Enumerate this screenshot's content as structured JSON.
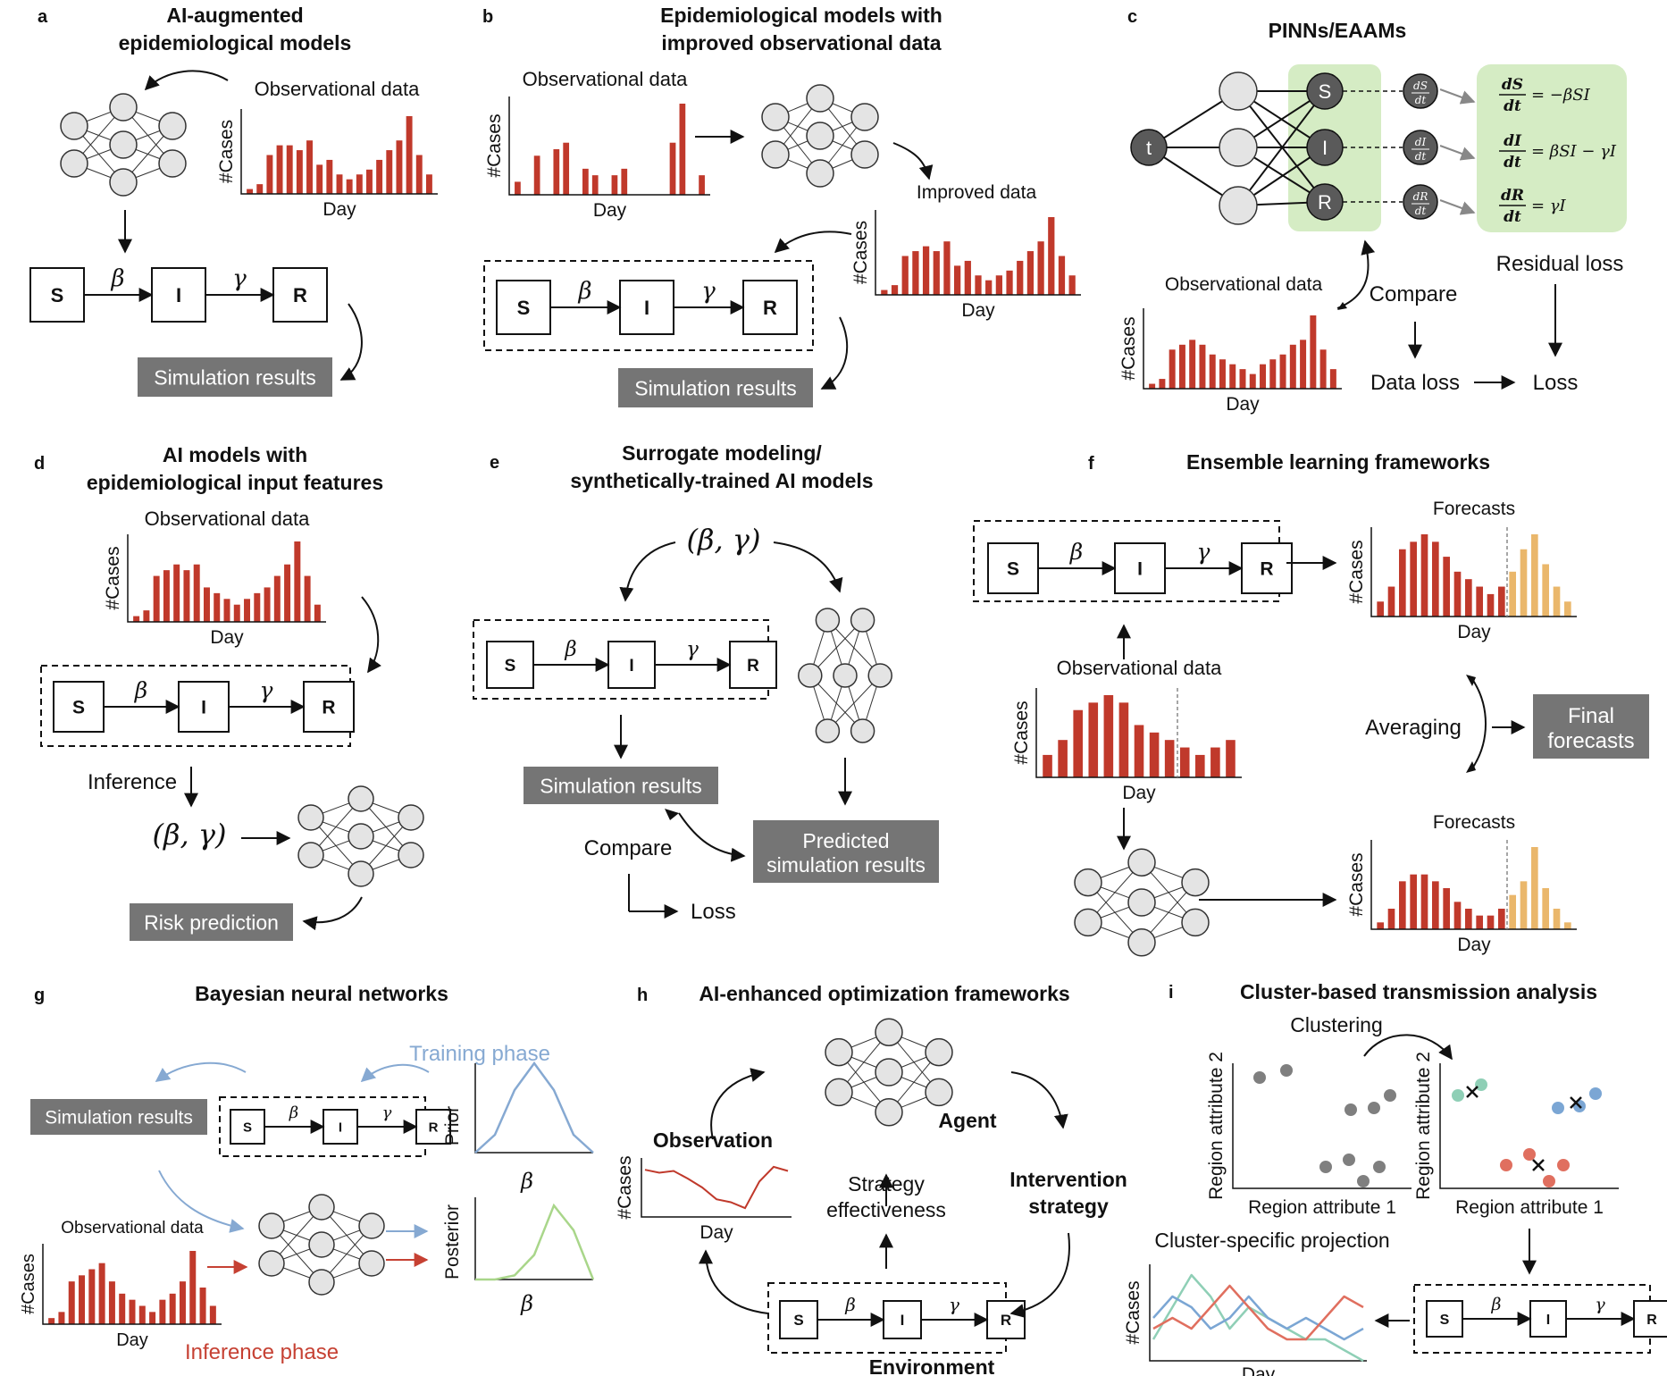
{
  "colors": {
    "bar": "#c0392b",
    "forecast": "#eab76b",
    "gray_box": "#757575",
    "green": "#d5ecc4",
    "node": "#e4e4e4",
    "dark_node": "#5a5a5a",
    "training": "#86a9d2",
    "inference": "#c64133",
    "prior": "#86a9d2",
    "posterior": "#a9d68a",
    "teal": "#8fcfb6",
    "blue": "#7ba6d4",
    "red": "#e06f5f"
  },
  "sir": {
    "S": "S",
    "I": "I",
    "R": "R",
    "beta": "β",
    "gamma": "γ"
  },
  "common": {
    "cases": "#Cases",
    "day": "Day",
    "obs": "Observational data",
    "sim": "Simulation results",
    "params": "(β, γ)"
  },
  "a": {
    "letter": "a",
    "title1": "AI-augmented",
    "title2": "epidemiological models"
  },
  "b": {
    "letter": "b",
    "title1": "Epidemiological models with",
    "title2": "improved observational data",
    "improved": "Improved data"
  },
  "c": {
    "letter": "c",
    "title": "PINNs/EAAMs",
    "t": "t",
    "dS": "dS",
    "dI": "dI",
    "dR": "dR",
    "dt": "dt",
    "eq1": "= −βSI",
    "eq2": "= βSI − γI",
    "eq3": "= γI",
    "residual": "Residual loss",
    "compare": "Compare",
    "data_loss": "Data loss",
    "loss": "Loss"
  },
  "d": {
    "letter": "d",
    "title1": "AI models with",
    "title2": "epidemiological input features",
    "inference": "Inference",
    "risk": "Risk prediction"
  },
  "e": {
    "letter": "e",
    "title1": "Surrogate modeling/",
    "title2": "synthetically-trained AI models",
    "compare": "Compare",
    "loss": "Loss",
    "pred1": "Predicted",
    "pred2": "simulation results"
  },
  "f": {
    "letter": "f",
    "title": "Ensemble learning frameworks",
    "forecasts": "Forecasts",
    "averaging": "Averaging",
    "final1": "Final",
    "final2": "forecasts"
  },
  "g": {
    "letter": "g",
    "title": "Bayesian neural networks",
    "training": "Training phase",
    "inference": "Inference phase",
    "prior": "Prior",
    "posterior": "Posterior",
    "beta": "β"
  },
  "h": {
    "letter": "h",
    "title": "AI-enhanced optimization frameworks",
    "agent": "Agent",
    "observation": "Observation",
    "strategy1": "Strategy",
    "strategy2": "effectiveness",
    "intervention1": "Intervention",
    "intervention2": "strategy",
    "environment": "Environment"
  },
  "i": {
    "letter": "i",
    "title": "Cluster-based transmission analysis",
    "clustering": "Clustering",
    "ra1": "Region attribute 1",
    "ra2": "Region attribute 2",
    "projection": "Cluster-specific projection"
  },
  "chart_data": [
    {
      "type": "bar",
      "id": "a",
      "values": [
        1,
        2,
        8,
        10,
        10,
        9,
        11,
        6,
        7,
        4,
        3,
        4,
        5,
        7,
        9,
        11,
        16,
        8,
        4
      ],
      "xlabel": "Day",
      "ylabel": "#Cases"
    },
    {
      "type": "bar",
      "id": "b-obs",
      "values": [
        2,
        0,
        6,
        0,
        7,
        8,
        0,
        4,
        3,
        0,
        3,
        4,
        0,
        0,
        0,
        0,
        8,
        14,
        0,
        3
      ],
      "xlabel": "Day",
      "ylabel": "#Cases"
    },
    {
      "type": "bar",
      "id": "b-improved",
      "values": [
        1,
        2,
        8,
        9,
        10,
        9,
        11,
        6,
        7,
        4,
        3,
        4,
        5,
        7,
        9,
        11,
        16,
        8,
        4
      ],
      "xlabel": "Day",
      "ylabel": "#Cases"
    },
    {
      "type": "bar",
      "id": "c",
      "values": [
        1,
        2,
        8,
        9,
        10,
        9,
        7,
        6,
        5,
        4,
        3,
        5,
        6,
        7,
        9,
        10,
        15,
        8,
        4
      ],
      "xlabel": "Day",
      "ylabel": "#Cases"
    },
    {
      "type": "bar",
      "id": "d",
      "values": [
        1,
        2,
        8,
        9,
        10,
        9,
        10,
        6,
        5,
        4,
        3,
        4,
        5,
        6,
        8,
        10,
        14,
        8,
        3
      ],
      "xlabel": "Day",
      "ylabel": "#Cases"
    },
    {
      "type": "bar",
      "id": "f-obs",
      "values": [
        3,
        5,
        9,
        10,
        11,
        10,
        7,
        6,
        5,
        4,
        3,
        4,
        5
      ],
      "xlabel": "Day",
      "ylabel": "#Cases"
    },
    {
      "type": "bar",
      "id": "f-forecast-1",
      "observed": [
        2,
        4,
        9,
        10,
        11,
        10,
        8,
        6,
        5,
        4,
        3,
        4
      ],
      "forecast": [
        6,
        9,
        11,
        7,
        4,
        2
      ],
      "xlabel": "Day",
      "ylabel": "#Cases",
      "series": [
        {
          "name": "Forecasts"
        }
      ]
    },
    {
      "type": "bar",
      "id": "f-forecast-2",
      "observed": [
        1,
        3,
        7,
        8,
        8,
        7,
        6,
        4,
        3,
        2,
        2,
        3
      ],
      "forecast": [
        5,
        7,
        12,
        6,
        3,
        1
      ],
      "xlabel": "Day",
      "ylabel": "#Cases",
      "series": [
        {
          "name": "Forecasts"
        }
      ]
    },
    {
      "type": "bar",
      "id": "g",
      "values": [
        1,
        2,
        7,
        8,
        9,
        10,
        7,
        5,
        4,
        3,
        2,
        4,
        5,
        7,
        12,
        6,
        3
      ],
      "xlabel": "Day",
      "ylabel": "#Cases"
    },
    {
      "type": "line",
      "id": "h",
      "x": [
        0,
        1,
        2,
        3,
        4,
        5,
        6,
        7,
        8,
        9,
        10
      ],
      "y": [
        8,
        7.5,
        7.8,
        6.5,
        5,
        3,
        2.5,
        1.5,
        6,
        8.5,
        7.8
      ],
      "xlabel": "Day",
      "ylabel": "#Cases"
    },
    {
      "type": "line",
      "id": "g-prior",
      "x": [
        0,
        1,
        2,
        3,
        4,
        5,
        6
      ],
      "y": [
        0,
        0.2,
        0.7,
        1,
        0.7,
        0.2,
        0
      ],
      "xlabel": "β",
      "ylabel": "Prior"
    },
    {
      "type": "line",
      "id": "g-posterior",
      "x": [
        0,
        1,
        2,
        3,
        4,
        5,
        6
      ],
      "y": [
        0,
        0,
        0.05,
        0.3,
        0.9,
        0.6,
        0
      ],
      "xlabel": "β",
      "ylabel": "Posterior"
    },
    {
      "type": "scatter",
      "id": "i-raw",
      "points": [
        [
          1.5,
          6.2
        ],
        [
          3,
          6.6
        ],
        [
          6.6,
          4.4
        ],
        [
          7.9,
          4.5
        ],
        [
          8.8,
          5.2
        ],
        [
          5.2,
          1.2
        ],
        [
          6.5,
          1.6
        ],
        [
          7.3,
          0.4
        ],
        [
          8.2,
          1.2
        ]
      ],
      "xlabel": "Region attribute 1",
      "ylabel": "Region attribute 2"
    },
    {
      "type": "scatter",
      "id": "i-clustered",
      "series": [
        {
          "color": "#8fcfb6",
          "points": [
            [
              1,
              5.2
            ],
            [
              2.3,
              5.8
            ]
          ]
        },
        {
          "color": "#7ba6d4",
          "points": [
            [
              6.6,
              4.5
            ],
            [
              7.8,
              4.6
            ],
            [
              8.7,
              5.3
            ]
          ]
        },
        {
          "color": "#e06f5f",
          "points": [
            [
              3.7,
              1.3
            ],
            [
              5,
              1.9
            ],
            [
              6.1,
              0.4
            ],
            [
              6.9,
              1.3
            ]
          ]
        }
      ],
      "centroids": [
        [
          1.8,
          5.4
        ],
        [
          7.6,
          4.8
        ],
        [
          5.5,
          1.3
        ]
      ],
      "xlabel": "Region attribute 1",
      "ylabel": "Region attribute 2"
    },
    {
      "type": "line",
      "id": "i-projection",
      "series": [
        {
          "color": "#8fcfb6",
          "y": [
            2,
            5,
            8,
            6,
            3,
            5,
            4,
            3,
            2,
            2,
            1,
            0
          ]
        },
        {
          "color": "#7ba6d4",
          "y": [
            4,
            6,
            5,
            3,
            4,
            6,
            4,
            3,
            4,
            3,
            2,
            3
          ]
        },
        {
          "color": "#e06f5f",
          "y": [
            3,
            4,
            3,
            5,
            7,
            5,
            3,
            2,
            2,
            4,
            6,
            5
          ]
        }
      ],
      "xlabel": "Day",
      "ylabel": "#Cases"
    }
  ]
}
